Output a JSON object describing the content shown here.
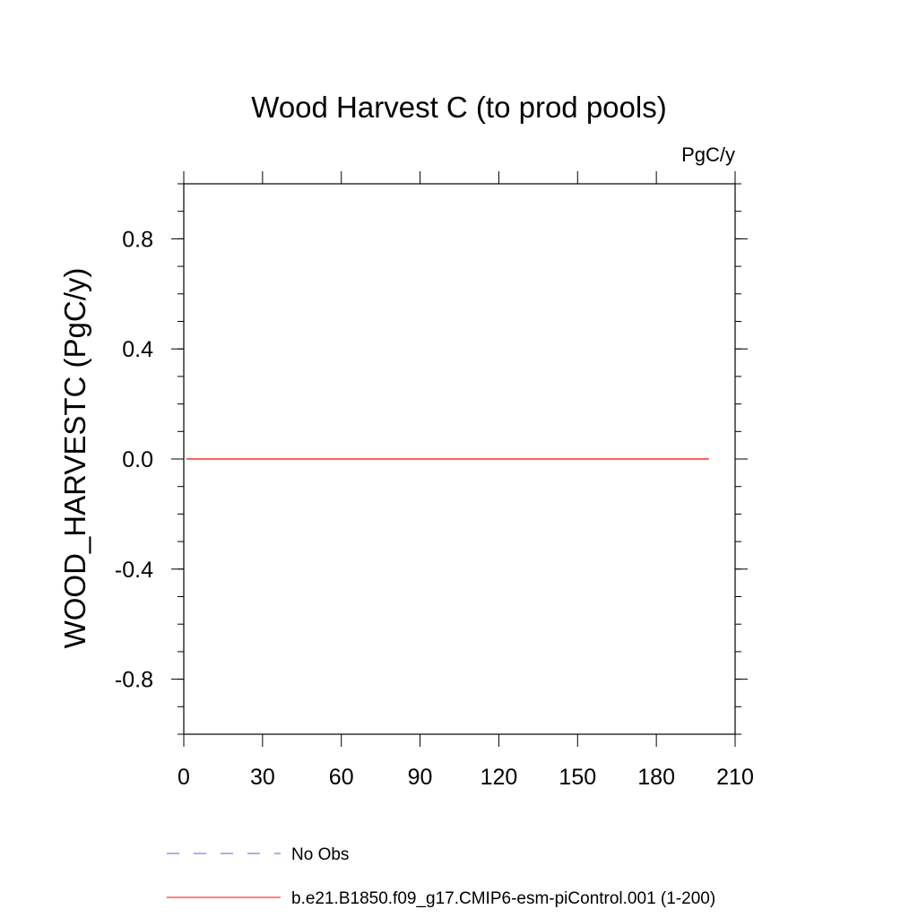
{
  "chart_data": {
    "type": "line",
    "title": "Wood Harvest C (to prod pools)",
    "units_label": "PgC/y",
    "ylabel": "WOOD_HARVESTC  (PgC/y)",
    "xlabel": "",
    "xlim": [
      0,
      210
    ],
    "ylim": [
      -1.0,
      1.0
    ],
    "x_ticks": [
      0,
      30,
      60,
      90,
      120,
      150,
      180,
      210
    ],
    "y_ticks": [
      -0.8,
      -0.4,
      0.0,
      0.4,
      0.8
    ],
    "y_tick_labels": [
      "-0.8",
      "-0.4",
      "0.0",
      "0.4",
      "0.8"
    ],
    "x_minor_step": 30,
    "y_minor_step": 0.1,
    "grid": false,
    "legend_position": "bottom",
    "series": [
      {
        "name": "No Obs",
        "color": "#6a5acd",
        "dash": "dashed",
        "x": [],
        "y": []
      },
      {
        "name": "b.e21.B1850.f09_g17.CMIP6-esm-piControl.001 (1-200)",
        "color": "#ff0000",
        "dash": "solid",
        "x": [
          1,
          200
        ],
        "y": [
          0.0,
          0.0
        ]
      }
    ]
  }
}
